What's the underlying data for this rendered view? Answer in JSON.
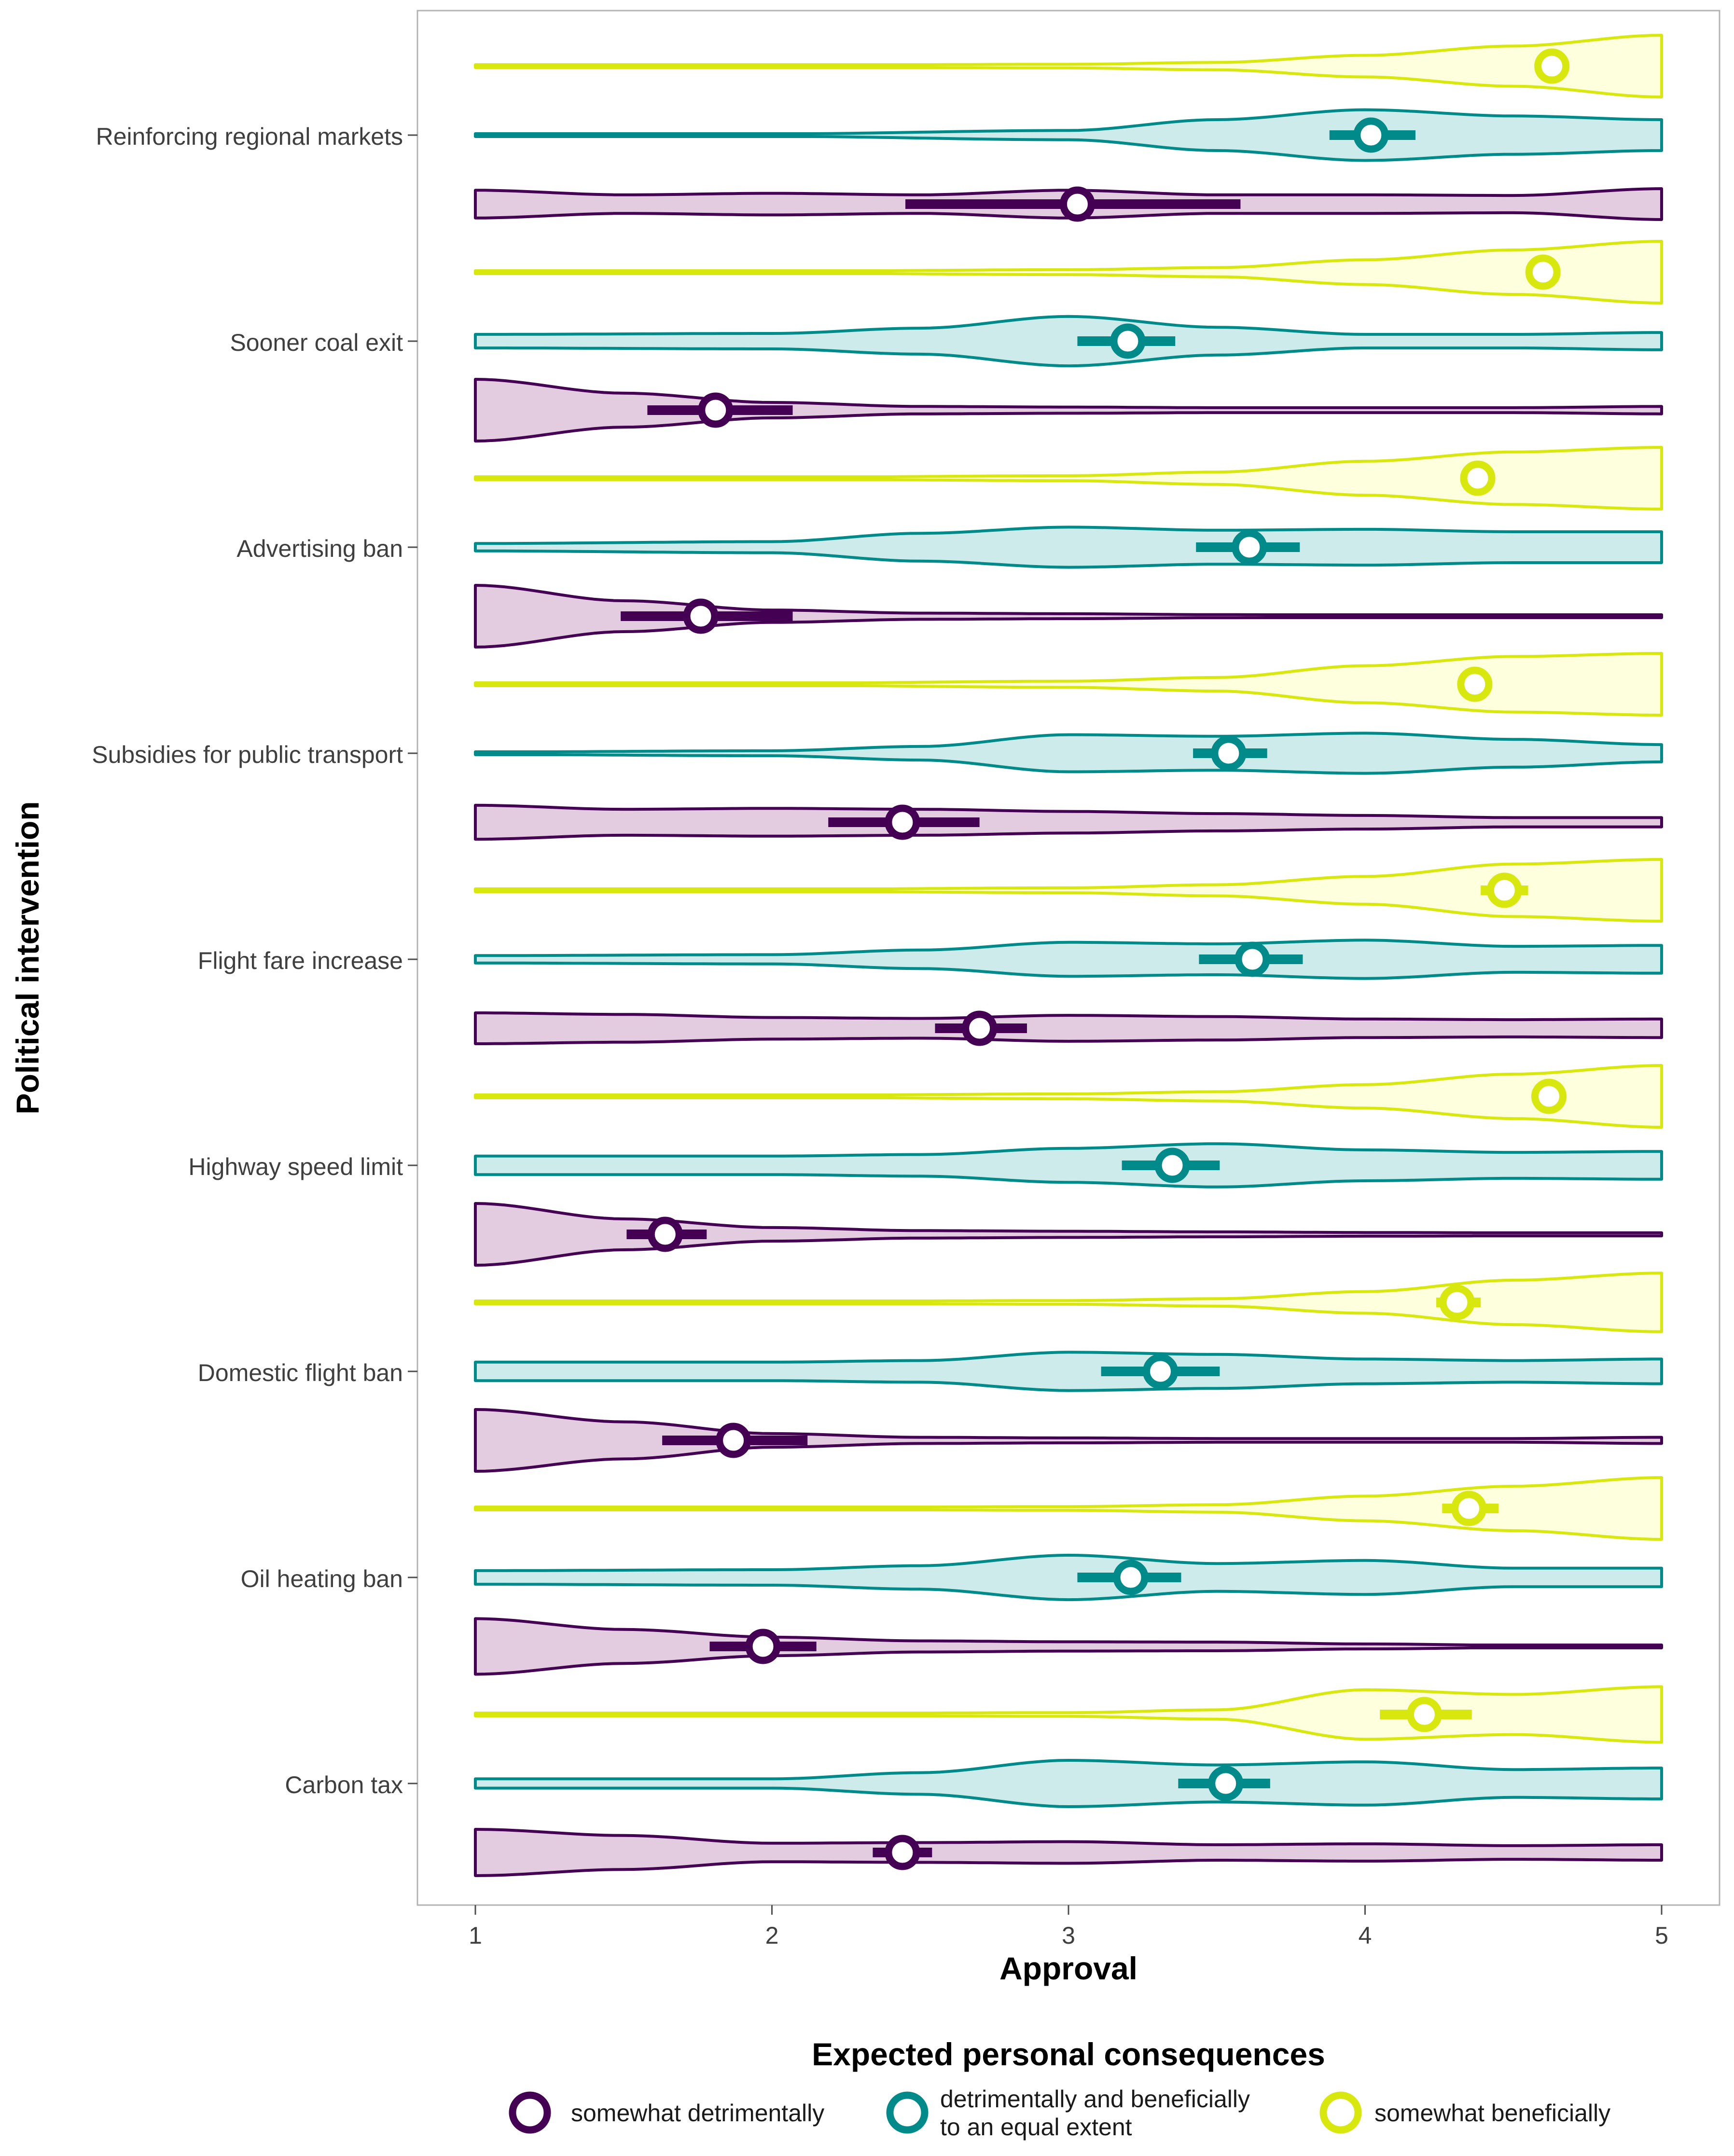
{
  "chart_data": {
    "type": "violin",
    "xlabel": "Approval",
    "ylabel": "Political intervention",
    "xlim": [
      1,
      5
    ],
    "x_ticks": [
      1,
      2,
      3,
      4,
      5
    ],
    "x_tick_labels": [
      "1",
      "2",
      "3",
      "4",
      "5"
    ],
    "grid": false,
    "legend": {
      "title": "Expected personal consequences",
      "position": "bottom",
      "entries": [
        {
          "label_lines": [
            "somewhat detrimentally"
          ],
          "color": "#440154"
        },
        {
          "label_lines": [
            "detrimentally and beneficially",
            "to an equal extent"
          ],
          "color": "#018A8A"
        },
        {
          "label_lines": [
            "somewhat beneficially"
          ],
          "color": "#D8E80F"
        }
      ]
    },
    "series_colors": {
      "detrimental": "#440154",
      "equal": "#018A8A",
      "beneficial": "#D8E80F"
    },
    "series_fills": {
      "detrimental": "#E4CCE0",
      "equal": "#CDEBEA",
      "beneficial": "#FEFFDC"
    },
    "categories": [
      {
        "label": "Reinforcing regional markets",
        "beneficial": {
          "mean": 4.63,
          "ci": [
            4.6,
            4.66
          ],
          "density": [
            [
              1,
              0.02
            ],
            [
              2,
              0.03
            ],
            [
              3,
              0.06
            ],
            [
              3.5,
              0.12
            ],
            [
              4,
              0.35
            ],
            [
              4.5,
              0.65
            ],
            [
              5,
              1.0
            ]
          ]
        },
        "equal": {
          "mean": 4.02,
          "ci": [
            3.88,
            4.17
          ],
          "density": [
            [
              1,
              0.02
            ],
            [
              2,
              0.04
            ],
            [
              3,
              0.15
            ],
            [
              3.5,
              0.5
            ],
            [
              4,
              0.82
            ],
            [
              4.5,
              0.62
            ],
            [
              5,
              0.5
            ]
          ]
        },
        "detrimental": {
          "mean": 3.03,
          "ci": [
            2.45,
            3.58
          ],
          "density": [
            [
              1,
              0.45
            ],
            [
              1.5,
              0.3
            ],
            [
              2,
              0.35
            ],
            [
              2.5,
              0.3
            ],
            [
              3,
              0.45
            ],
            [
              3.5,
              0.3
            ],
            [
              4,
              0.3
            ],
            [
              4.5,
              0.28
            ],
            [
              5,
              0.5
            ]
          ]
        }
      },
      {
        "label": "Sooner coal exit",
        "beneficial": {
          "mean": 4.6,
          "ci": [
            4.56,
            4.64
          ],
          "density": [
            [
              1,
              0.02
            ],
            [
              2,
              0.03
            ],
            [
              3,
              0.08
            ],
            [
              3.5,
              0.15
            ],
            [
              4,
              0.4
            ],
            [
              4.5,
              0.72
            ],
            [
              5,
              1.0
            ]
          ]
        },
        "equal": {
          "mean": 3.2,
          "ci": [
            3.03,
            3.36
          ],
          "density": [
            [
              1,
              0.22
            ],
            [
              2,
              0.25
            ],
            [
              2.5,
              0.42
            ],
            [
              3,
              0.8
            ],
            [
              3.5,
              0.45
            ],
            [
              4,
              0.22
            ],
            [
              4.5,
              0.22
            ],
            [
              5,
              0.28
            ]
          ]
        },
        "detrimental": {
          "mean": 1.81,
          "ci": [
            1.58,
            2.07
          ],
          "density": [
            [
              1,
              1.0
            ],
            [
              1.5,
              0.55
            ],
            [
              2,
              0.25
            ],
            [
              2.5,
              0.12
            ],
            [
              3,
              0.1
            ],
            [
              3.5,
              0.08
            ],
            [
              4,
              0.08
            ],
            [
              4.5,
              0.08
            ],
            [
              5,
              0.12
            ]
          ]
        }
      },
      {
        "label": "Advertising ban",
        "beneficial": {
          "mean": 4.38,
          "ci": [
            4.33,
            4.43
          ],
          "density": [
            [
              1,
              0.02
            ],
            [
              2,
              0.03
            ],
            [
              3,
              0.08
            ],
            [
              3.5,
              0.2
            ],
            [
              4,
              0.55
            ],
            [
              4.5,
              0.85
            ],
            [
              5,
              1.0
            ]
          ]
        },
        "equal": {
          "mean": 3.61,
          "ci": [
            3.43,
            3.78
          ],
          "density": [
            [
              1,
              0.12
            ],
            [
              2,
              0.18
            ],
            [
              2.5,
              0.45
            ],
            [
              3,
              0.65
            ],
            [
              3.5,
              0.55
            ],
            [
              4,
              0.58
            ],
            [
              4.5,
              0.5
            ],
            [
              5,
              0.5
            ]
          ]
        },
        "detrimental": {
          "mean": 1.76,
          "ci": [
            1.49,
            2.07
          ],
          "density": [
            [
              1,
              1.0
            ],
            [
              1.5,
              0.5
            ],
            [
              2,
              0.2
            ],
            [
              2.5,
              0.1
            ],
            [
              3,
              0.08
            ],
            [
              3.5,
              0.05
            ],
            [
              4,
              0.04
            ],
            [
              4.5,
              0.03
            ],
            [
              5,
              0.03
            ]
          ]
        }
      },
      {
        "label": "Subsidies for public transport",
        "beneficial": {
          "mean": 4.37,
          "ci": [
            4.32,
            4.42
          ],
          "density": [
            [
              1,
              0.02
            ],
            [
              2,
              0.03
            ],
            [
              3,
              0.1
            ],
            [
              3.5,
              0.22
            ],
            [
              4,
              0.6
            ],
            [
              4.5,
              0.9
            ],
            [
              5,
              1.0
            ]
          ]
        },
        "equal": {
          "mean": 3.54,
          "ci": [
            3.42,
            3.67
          ],
          "density": [
            [
              1,
              0.04
            ],
            [
              2,
              0.08
            ],
            [
              2.5,
              0.22
            ],
            [
              3,
              0.6
            ],
            [
              3.5,
              0.55
            ],
            [
              4,
              0.65
            ],
            [
              4.5,
              0.45
            ],
            [
              5,
              0.28
            ]
          ]
        },
        "detrimental": {
          "mean": 2.44,
          "ci": [
            2.19,
            2.7
          ],
          "density": [
            [
              1,
              0.55
            ],
            [
              1.5,
              0.42
            ],
            [
              2,
              0.45
            ],
            [
              2.5,
              0.42
            ],
            [
              3,
              0.35
            ],
            [
              3.5,
              0.28
            ],
            [
              4,
              0.22
            ],
            [
              4.5,
              0.15
            ],
            [
              5,
              0.15
            ]
          ]
        }
      },
      {
        "label": "Flight fare increase",
        "beneficial": {
          "mean": 4.47,
          "ci": [
            4.39,
            4.55
          ],
          "density": [
            [
              1,
              0.02
            ],
            [
              2,
              0.03
            ],
            [
              3,
              0.08
            ],
            [
              3.5,
              0.18
            ],
            [
              4,
              0.45
            ],
            [
              4.5,
              0.85
            ],
            [
              5,
              1.0
            ]
          ]
        },
        "equal": {
          "mean": 3.62,
          "ci": [
            3.44,
            3.79
          ],
          "density": [
            [
              1,
              0.12
            ],
            [
              2,
              0.15
            ],
            [
              2.5,
              0.3
            ],
            [
              3,
              0.55
            ],
            [
              3.5,
              0.5
            ],
            [
              4,
              0.62
            ],
            [
              4.5,
              0.42
            ],
            [
              5,
              0.45
            ]
          ]
        },
        "detrimental": {
          "mean": 2.7,
          "ci": [
            2.55,
            2.86
          ],
          "density": [
            [
              1,
              0.5
            ],
            [
              1.5,
              0.45
            ],
            [
              2,
              0.35
            ],
            [
              2.5,
              0.32
            ],
            [
              3,
              0.42
            ],
            [
              3.5,
              0.38
            ],
            [
              4,
              0.3
            ],
            [
              4.5,
              0.28
            ],
            [
              5,
              0.3
            ]
          ]
        }
      },
      {
        "label": "Highway speed limit",
        "beneficial": {
          "mean": 4.62,
          "ci": [
            4.58,
            4.66
          ],
          "density": [
            [
              1,
              0.02
            ],
            [
              2,
              0.03
            ],
            [
              3,
              0.08
            ],
            [
              3.5,
              0.15
            ],
            [
              4,
              0.38
            ],
            [
              4.5,
              0.72
            ],
            [
              5,
              1.0
            ]
          ]
        },
        "equal": {
          "mean": 3.35,
          "ci": [
            3.18,
            3.51
          ],
          "density": [
            [
              1,
              0.3
            ],
            [
              2,
              0.3
            ],
            [
              2.5,
              0.35
            ],
            [
              3,
              0.55
            ],
            [
              3.5,
              0.7
            ],
            [
              4,
              0.5
            ],
            [
              4.5,
              0.42
            ],
            [
              5,
              0.45
            ]
          ]
        },
        "detrimental": {
          "mean": 1.64,
          "ci": [
            1.51,
            1.78
          ],
          "density": [
            [
              1,
              1.0
            ],
            [
              1.5,
              0.5
            ],
            [
              2,
              0.22
            ],
            [
              2.5,
              0.12
            ],
            [
              3,
              0.1
            ],
            [
              3.5,
              0.08
            ],
            [
              4,
              0.06
            ],
            [
              4.5,
              0.05
            ],
            [
              5,
              0.05
            ]
          ]
        }
      },
      {
        "label": "Domestic flight ban",
        "beneficial": {
          "mean": 4.31,
          "ci": [
            4.24,
            4.39
          ],
          "density": [
            [
              1,
              0.02
            ],
            [
              2,
              0.03
            ],
            [
              3,
              0.06
            ],
            [
              3.5,
              0.12
            ],
            [
              4,
              0.35
            ],
            [
              4.5,
              0.72
            ],
            [
              5,
              0.95
            ]
          ]
        },
        "equal": {
          "mean": 3.31,
          "ci": [
            3.11,
            3.51
          ],
          "density": [
            [
              1,
              0.3
            ],
            [
              2,
              0.3
            ],
            [
              2.5,
              0.35
            ],
            [
              3,
              0.62
            ],
            [
              3.5,
              0.55
            ],
            [
              4,
              0.4
            ],
            [
              4.5,
              0.35
            ],
            [
              5,
              0.4
            ]
          ]
        },
        "detrimental": {
          "mean": 1.87,
          "ci": [
            1.63,
            2.12
          ],
          "density": [
            [
              1,
              1.0
            ],
            [
              1.5,
              0.6
            ],
            [
              2,
              0.22
            ],
            [
              2.5,
              0.1
            ],
            [
              3,
              0.08
            ],
            [
              3.5,
              0.06
            ],
            [
              4,
              0.06
            ],
            [
              4.5,
              0.06
            ],
            [
              5,
              0.1
            ]
          ]
        }
      },
      {
        "label": "Oil heating ban",
        "beneficial": {
          "mean": 4.35,
          "ci": [
            4.26,
            4.45
          ],
          "density": [
            [
              1,
              0.02
            ],
            [
              2,
              0.03
            ],
            [
              3,
              0.06
            ],
            [
              3.5,
              0.12
            ],
            [
              4,
              0.4
            ],
            [
              4.5,
              0.72
            ],
            [
              5,
              1.0
            ]
          ]
        },
        "equal": {
          "mean": 3.21,
          "ci": [
            3.03,
            3.38
          ],
          "density": [
            [
              1,
              0.22
            ],
            [
              2,
              0.25
            ],
            [
              2.5,
              0.38
            ],
            [
              3,
              0.72
            ],
            [
              3.5,
              0.45
            ],
            [
              4,
              0.55
            ],
            [
              4.5,
              0.3
            ],
            [
              5,
              0.3
            ]
          ]
        },
        "detrimental": {
          "mean": 1.97,
          "ci": [
            1.79,
            2.15
          ],
          "density": [
            [
              1,
              0.9
            ],
            [
              1.5,
              0.55
            ],
            [
              2,
              0.3
            ],
            [
              2.5,
              0.18
            ],
            [
              3,
              0.15
            ],
            [
              3.5,
              0.14
            ],
            [
              4,
              0.08
            ],
            [
              4.5,
              0.04
            ],
            [
              5,
              0.03
            ]
          ]
        }
      },
      {
        "label": "Carbon tax",
        "beneficial": {
          "mean": 4.2,
          "ci": [
            4.05,
            4.36
          ],
          "density": [
            [
              1,
              0.02
            ],
            [
              2,
              0.03
            ],
            [
              3,
              0.06
            ],
            [
              3.5,
              0.15
            ],
            [
              4,
              0.8
            ],
            [
              4.5,
              0.65
            ],
            [
              5,
              0.9
            ]
          ]
        },
        "equal": {
          "mean": 3.53,
          "ci": [
            3.37,
            3.68
          ],
          "density": [
            [
              1,
              0.15
            ],
            [
              2,
              0.15
            ],
            [
              2.5,
              0.35
            ],
            [
              3,
              0.75
            ],
            [
              3.5,
              0.6
            ],
            [
              4,
              0.7
            ],
            [
              4.5,
              0.45
            ],
            [
              5,
              0.5
            ]
          ]
        },
        "detrimental": {
          "mean": 2.44,
          "ci": [
            2.34,
            2.54
          ],
          "density": [
            [
              1,
              0.75
            ],
            [
              1.5,
              0.55
            ],
            [
              2,
              0.3
            ],
            [
              2.5,
              0.32
            ],
            [
              3,
              0.35
            ],
            [
              3.5,
              0.25
            ],
            [
              4,
              0.28
            ],
            [
              4.5,
              0.22
            ],
            [
              5,
              0.25
            ]
          ]
        }
      }
    ]
  }
}
